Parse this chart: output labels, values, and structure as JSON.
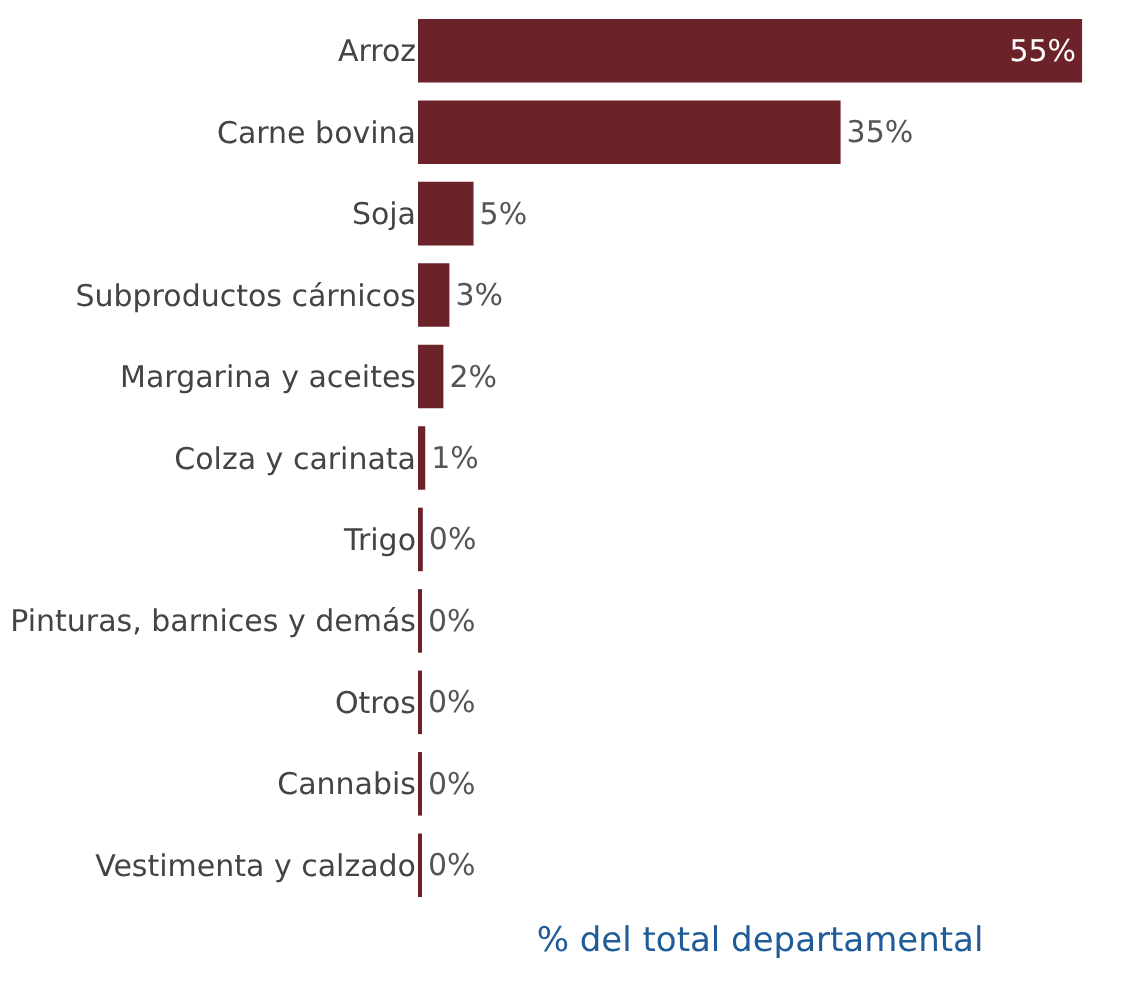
{
  "chart_data": {
    "type": "bar",
    "orientation": "horizontal",
    "xlabel": "% del total departamental",
    "categories": [
      "Arroz",
      "Carne bovina",
      "Soja",
      "Subproductos cárnicos",
      "Margarina y aceites",
      "Colza y carinata",
      "Trigo",
      "Pinturas, barnices y demás",
      "Otros",
      "Cannabis",
      "Vestimenta y calzado"
    ],
    "values": [
      55,
      35,
      4.6,
      2.6,
      2.1,
      0.6,
      0.4,
      0.3,
      0.3,
      0.3,
      0.3
    ],
    "value_labels": [
      "55%",
      "35%",
      "5%",
      "3%",
      "2%",
      "1%",
      "0%",
      "0%",
      "0%",
      "0%",
      "0%"
    ],
    "color": "#6b2228",
    "tick_labels": "y"
  }
}
